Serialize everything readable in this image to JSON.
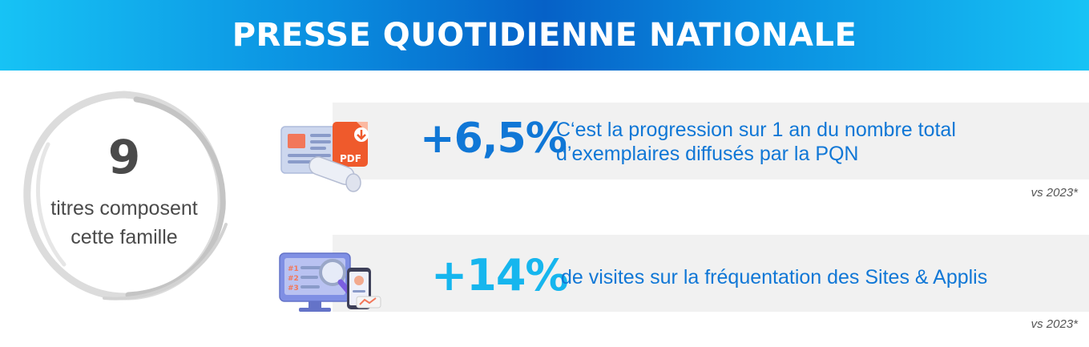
{
  "header": {
    "title": "PRESSE QUOTIDIENNE NATIONALE"
  },
  "summary": {
    "count": "9",
    "caption_line1": "titres composent",
    "caption_line2": "cette famille"
  },
  "stats": [
    {
      "value": "+6,5%",
      "description_line1": "C‘est la progression sur 1 an du nombre total",
      "description_line2": "d’exemplaires diffusés par la PQN",
      "comparison": "vs 2023*",
      "icon": "newspaper-pdf-icon",
      "icon_label": "PDF"
    },
    {
      "value": "+14%",
      "description_line1": "de visites sur la fréquentation des Sites & Applis",
      "comparison": "vs 2023*",
      "icon": "monitor-search-icon",
      "icon_label_1": "#1",
      "icon_label_2": "#2",
      "icon_label_3": "#3"
    }
  ],
  "colors": {
    "accent_dark": "#1077d6",
    "accent_light": "#16b6ee",
    "panel": "#f1f1f1"
  }
}
